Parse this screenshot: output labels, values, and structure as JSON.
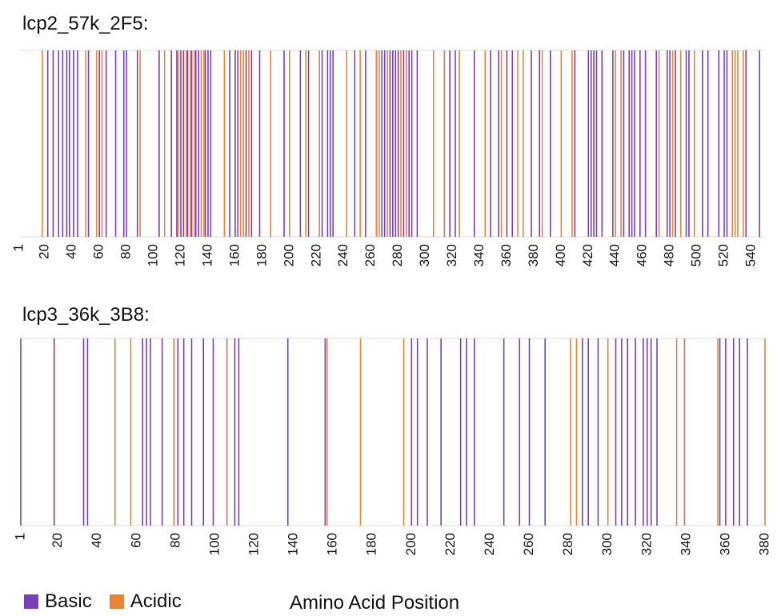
{
  "legend": {
    "basic": "Basic",
    "acidic": "Acidic"
  },
  "colors": {
    "basic": "#7b3fb5",
    "acidic": "#e8843a",
    "overlap": "#8a1b3c"
  },
  "chart_data": [
    {
      "type": "bar",
      "title": "lcp2_57k_2F5:",
      "xlabel": "Amino Acid Position",
      "xlim": [
        1,
        550
      ],
      "ticks": [
        "1",
        "20",
        "40",
        "60",
        "80",
        "100",
        "120",
        "140",
        "160",
        "180",
        "200",
        "220",
        "240",
        "260",
        "280",
        "300",
        "320",
        "340",
        "360",
        "380",
        "400",
        "420",
        "440",
        "460",
        "480",
        "500",
        "520",
        "540"
      ],
      "series": [
        {
          "name": "Basic",
          "positions": [
            22,
            26,
            30,
            33,
            36,
            38,
            41,
            44,
            52,
            60,
            65,
            72,
            78,
            80,
            88,
            104,
            113,
            117,
            120,
            122,
            125,
            128,
            131,
            133,
            138,
            140,
            142,
            156,
            160,
            162,
            168,
            172,
            178,
            196,
            208,
            214,
            224,
            228,
            230,
            232,
            248,
            256,
            264,
            268,
            270,
            274,
            276,
            278,
            280,
            284,
            288,
            290,
            294,
            314,
            318,
            322,
            336,
            344,
            348,
            354,
            360,
            364,
            378,
            384,
            392,
            410,
            420,
            422,
            424,
            426,
            430,
            438,
            446,
            450,
            452,
            454,
            458,
            462,
            470,
            478,
            480,
            484,
            492,
            494,
            504,
            508,
            516,
            520,
            522,
            526,
            536,
            546
          ]
        },
        {
          "name": "Acidic",
          "positions": [
            18,
            50,
            58,
            62,
            90,
            108,
            118,
            124,
            127,
            130,
            135,
            137,
            152,
            164,
            166,
            170,
            186,
            200,
            212,
            222,
            242,
            252,
            264,
            266,
            272,
            282,
            286,
            306,
            314,
            325,
            344,
            356,
            368,
            372,
            386,
            400,
            408,
            440,
            444,
            472,
            482,
            488,
            498,
            526,
            528,
            530,
            534
          ]
        }
      ]
    },
    {
      "type": "bar",
      "title": "lcp3_36k_3B8:",
      "xlabel": "Amino Acid Position",
      "xlim": [
        1,
        380
      ],
      "ticks": [
        "1",
        "20",
        "40",
        "60",
        "80",
        "100",
        "120",
        "140",
        "160",
        "180",
        "200",
        "220",
        "240",
        "260",
        "280",
        "300",
        "320",
        "340",
        "360",
        "380"
      ],
      "series": [
        {
          "name": "Basic",
          "positions": [
            1,
            18,
            33,
            35,
            63,
            65,
            67,
            73,
            79,
            81,
            84,
            88,
            94,
            99,
            106,
            110,
            112,
            137,
            156,
            200,
            203,
            208,
            215,
            225,
            228,
            232,
            247,
            255,
            260,
            268,
            287,
            290,
            295,
            304,
            307,
            310,
            314,
            318,
            320,
            322,
            325,
            339,
            357,
            360,
            364,
            367,
            371
          ]
        },
        {
          "name": "Acidic",
          "positions": [
            49,
            57,
            79,
            106,
            157,
            174,
            196,
            281,
            284,
            300,
            335,
            339,
            356,
            380
          ]
        }
      ]
    }
  ]
}
